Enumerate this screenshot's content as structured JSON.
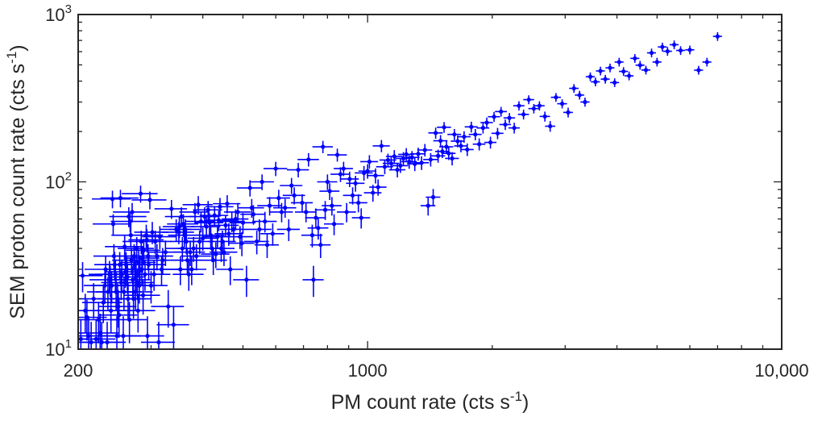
{
  "chart_data": {
    "type": "scatter",
    "title": "",
    "xlabel": {
      "base": "PM count rate (cts s",
      "sup": "-1",
      "tail": ")"
    },
    "ylabel": {
      "base": "SEM proton count rate (cts s",
      "sup": "-1",
      "tail": ")"
    },
    "x_scale": "log",
    "y_scale": "log",
    "xlim": [
      200,
      10000
    ],
    "ylim": [
      10,
      1000
    ],
    "x_tick_labels": [
      {
        "value": 200,
        "text": "200"
      },
      {
        "value": 1000,
        "text": "1000"
      },
      {
        "value": 10000,
        "text": "10,000"
      }
    ],
    "y_tick_labels": [
      {
        "value": 10,
        "base": "10",
        "sup": "1"
      },
      {
        "value": 100,
        "base": "10",
        "sup": "2"
      },
      {
        "value": 1000,
        "base": "10",
        "sup": "3"
      }
    ],
    "grid": false,
    "marker_color": "#0000ff",
    "axis_color": "#262626",
    "series": [
      {
        "error_bars": "relative, 1-sigma (x and y)",
        "points": [
          [
            203,
            11.5
          ],
          [
            205,
            27.5
          ],
          [
            208,
            17
          ],
          [
            210,
            15.5
          ],
          [
            212,
            12
          ],
          [
            215,
            11
          ],
          [
            218,
            20
          ],
          [
            221,
            11.5
          ],
          [
            224,
            15
          ],
          [
            226,
            12.5
          ],
          [
            228,
            11
          ],
          [
            230,
            19
          ],
          [
            232,
            24
          ],
          [
            233,
            30
          ],
          [
            235,
            11
          ],
          [
            236,
            22
          ],
          [
            238,
            28
          ],
          [
            239,
            26
          ],
          [
            240,
            17
          ],
          [
            241,
            24
          ],
          [
            242,
            79
          ],
          [
            243,
            56
          ],
          [
            244,
            36
          ],
          [
            245,
            32
          ],
          [
            246,
            28
          ],
          [
            247,
            22
          ],
          [
            248,
            12
          ],
          [
            249,
            20
          ],
          [
            250,
            18
          ],
          [
            251,
            16
          ],
          [
            252,
            32
          ],
          [
            253,
            80
          ],
          [
            254,
            25
          ],
          [
            255,
            28
          ],
          [
            257,
            12
          ],
          [
            258,
            22
          ],
          [
            259,
            41
          ],
          [
            260,
            29
          ],
          [
            261,
            32
          ],
          [
            262,
            30
          ],
          [
            263,
            27
          ],
          [
            264,
            20
          ],
          [
            265,
            62
          ],
          [
            266,
            15
          ],
          [
            267,
            58
          ],
          [
            268,
            48
          ],
          [
            269,
            34
          ],
          [
            270,
            66
          ],
          [
            271,
            26
          ],
          [
            272,
            20
          ],
          [
            273,
            36
          ],
          [
            274,
            32
          ],
          [
            275,
            22
          ],
          [
            276,
            28
          ],
          [
            277,
            40
          ],
          [
            278,
            25
          ],
          [
            279,
            17
          ],
          [
            280,
            33
          ],
          [
            281,
            24
          ],
          [
            282,
            30
          ],
          [
            283,
            85
          ],
          [
            284,
            44
          ],
          [
            285,
            30
          ],
          [
            286,
            35
          ],
          [
            287,
            21
          ],
          [
            288,
            39
          ],
          [
            290,
            28
          ],
          [
            292,
            48
          ],
          [
            293,
            45
          ],
          [
            294,
            12
          ],
          [
            295,
            36
          ],
          [
            296,
            32
          ],
          [
            298,
            78
          ],
          [
            300,
            24
          ],
          [
            302,
            50
          ],
          [
            305,
            28
          ],
          [
            307,
            44
          ],
          [
            310,
            36
          ],
          [
            313,
            11
          ],
          [
            315,
            47
          ],
          [
            318,
            30
          ],
          [
            320,
            34
          ],
          [
            325,
            38
          ],
          [
            330,
            18
          ],
          [
            336,
            69
          ],
          [
            340,
            14
          ],
          [
            345,
            52
          ],
          [
            350,
            50
          ],
          [
            351,
            54
          ],
          [
            353,
            30
          ],
          [
            355,
            62
          ],
          [
            357,
            40
          ],
          [
            359,
            56
          ],
          [
            361,
            48
          ],
          [
            363,
            52
          ],
          [
            365,
            44
          ],
          [
            367,
            34
          ],
          [
            370,
            28
          ],
          [
            373,
            38
          ],
          [
            376,
            30
          ],
          [
            380,
            40
          ],
          [
            383,
            66
          ],
          [
            386,
            36
          ],
          [
            390,
            73
          ],
          [
            393,
            44
          ],
          [
            396,
            58
          ],
          [
            400,
            46
          ],
          [
            404,
            62
          ],
          [
            408,
            54
          ],
          [
            412,
            68
          ],
          [
            415,
            57
          ],
          [
            418,
            48
          ],
          [
            421,
            40
          ],
          [
            424,
            34
          ],
          [
            427,
            63
          ],
          [
            430,
            37
          ],
          [
            434,
            47
          ],
          [
            437,
            59
          ],
          [
            440,
            71
          ],
          [
            443,
            40
          ],
          [
            446,
            44
          ],
          [
            450,
            38
          ],
          [
            454,
            55
          ],
          [
            458,
            74
          ],
          [
            462,
            49
          ],
          [
            466,
            30
          ],
          [
            470,
            58
          ],
          [
            475,
            52
          ],
          [
            480,
            60
          ],
          [
            486,
            66
          ],
          [
            492,
            47
          ],
          [
            497,
            43
          ],
          [
            500,
            57
          ],
          [
            510,
            26
          ],
          [
            520,
            92
          ],
          [
            525,
            70
          ],
          [
            530,
            64
          ],
          [
            540,
            44
          ],
          [
            548,
            52
          ],
          [
            556,
            100
          ],
          [
            565,
            58
          ],
          [
            572,
            42
          ],
          [
            580,
            72
          ],
          [
            590,
            49
          ],
          [
            600,
            120
          ],
          [
            610,
            80
          ],
          [
            620,
            66
          ],
          [
            632,
            70
          ],
          [
            645,
            52
          ],
          [
            655,
            95
          ],
          [
            665,
            83
          ],
          [
            680,
            118
          ],
          [
            695,
            75
          ],
          [
            710,
            66
          ],
          [
            720,
            136
          ],
          [
            735,
            48
          ],
          [
            740,
            26
          ],
          [
            750,
            61
          ],
          [
            760,
            53
          ],
          [
            770,
            42
          ],
          [
            780,
            162
          ],
          [
            790,
            68
          ],
          [
            800,
            100
          ],
          [
            810,
            88
          ],
          [
            820,
            72
          ],
          [
            830,
            56
          ],
          [
            845,
            145
          ],
          [
            860,
            111
          ],
          [
            875,
            120
          ],
          [
            890,
            66
          ],
          [
            905,
            104
          ],
          [
            920,
            83
          ],
          [
            935,
            98
          ],
          [
            950,
            75
          ],
          [
            965,
            61
          ],
          [
            980,
            113
          ],
          [
            1000,
            116
          ],
          [
            1010,
            132
          ],
          [
            1030,
            86
          ],
          [
            1045,
            109
          ],
          [
            1060,
            93
          ],
          [
            1080,
            164
          ],
          [
            1100,
            123
          ],
          [
            1120,
            135
          ],
          [
            1140,
            129
          ],
          [
            1160,
            142
          ],
          [
            1180,
            118
          ],
          [
            1200,
            125
          ],
          [
            1220,
            138
          ],
          [
            1240,
            146
          ],
          [
            1260,
            132
          ],
          [
            1280,
            140
          ],
          [
            1300,
            128
          ],
          [
            1325,
            147
          ],
          [
            1350,
            130
          ],
          [
            1375,
            155
          ],
          [
            1400,
            72
          ],
          [
            1420,
            136
          ],
          [
            1440,
            81
          ],
          [
            1460,
            196
          ],
          [
            1480,
            143
          ],
          [
            1500,
            176
          ],
          [
            1515,
            152
          ],
          [
            1530,
            212
          ],
          [
            1550,
            162
          ],
          [
            1570,
            148
          ],
          [
            1600,
            138
          ],
          [
            1620,
            192
          ],
          [
            1650,
            175
          ],
          [
            1680,
            164
          ],
          [
            1710,
            186
          ],
          [
            1740,
            156
          ],
          [
            1780,
            213
          ],
          [
            1820,
            192
          ],
          [
            1860,
            168
          ],
          [
            1900,
            210
          ],
          [
            1940,
            226
          ],
          [
            1980,
            172
          ],
          [
            2020,
            245
          ],
          [
            2060,
            195
          ],
          [
            2100,
            263
          ],
          [
            2150,
            220
          ],
          [
            2200,
            241
          ],
          [
            2260,
            210
          ],
          [
            2320,
            285
          ],
          [
            2380,
            253
          ],
          [
            2450,
            310
          ],
          [
            2520,
            274
          ],
          [
            2600,
            285
          ],
          [
            2680,
            246
          ],
          [
            2760,
            215
          ],
          [
            2850,
            320
          ],
          [
            2950,
            293
          ],
          [
            3050,
            260
          ],
          [
            3150,
            362
          ],
          [
            3250,
            330
          ],
          [
            3350,
            300
          ],
          [
            3450,
            425
          ],
          [
            3550,
            396
          ],
          [
            3650,
            460
          ],
          [
            3750,
            411
          ],
          [
            3850,
            480
          ],
          [
            3950,
            392
          ],
          [
            4050,
            520
          ],
          [
            4150,
            457
          ],
          [
            4280,
            430
          ],
          [
            4420,
            547
          ],
          [
            4550,
            498
          ],
          [
            4700,
            466
          ],
          [
            4850,
            590
          ],
          [
            5000,
            520
          ],
          [
            5150,
            640
          ],
          [
            5300,
            603
          ],
          [
            5500,
            660
          ],
          [
            5700,
            610
          ],
          [
            6000,
            615
          ],
          [
            6300,
            465
          ],
          [
            6600,
            520
          ],
          [
            7000,
            740
          ]
        ]
      }
    ]
  }
}
